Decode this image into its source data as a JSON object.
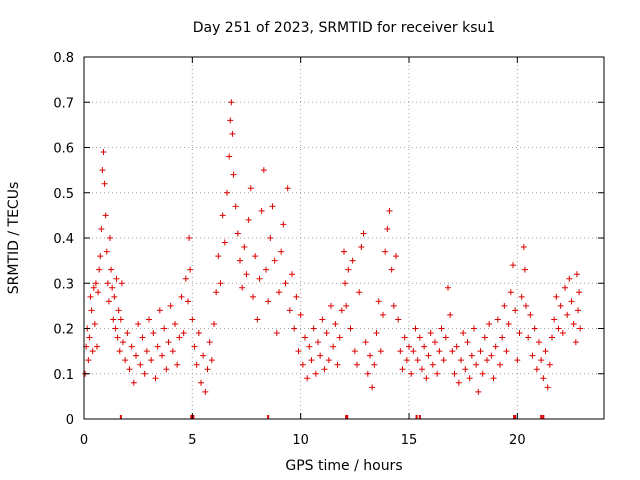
{
  "chart_data": {
    "type": "scatter",
    "title": "Day 251 of 2023, SRMTID for receiver ksu1",
    "xlabel": "GPS time / hours",
    "ylabel": "SRMTID / TECUs",
    "xlim": [
      0,
      24
    ],
    "ylim": [
      0,
      0.8
    ],
    "xticks": [
      0,
      5,
      10,
      15,
      20
    ],
    "yticks": [
      0,
      0.1,
      0.2,
      0.3,
      0.4,
      0.5,
      0.6,
      0.7,
      0.8
    ],
    "xtick_labels": [
      "0",
      "5",
      "10",
      "15",
      "20"
    ],
    "ytick_labels": [
      "0",
      "0.1",
      "0.2",
      "0.3",
      "0.4",
      "0.5",
      "0.6",
      "0.7",
      "0.8"
    ],
    "grid": true,
    "marker": "+",
    "marker_color": "#dd0000",
    "series": [
      {
        "name": "SRMTID",
        "points": [
          [
            0.05,
            0.1
          ],
          [
            0.1,
            0.16
          ],
          [
            0.15,
            0.2
          ],
          [
            0.2,
            0.13
          ],
          [
            0.25,
            0.18
          ],
          [
            0.3,
            0.27
          ],
          [
            0.35,
            0.24
          ],
          [
            0.4,
            0.15
          ],
          [
            0.45,
            0.29
          ],
          [
            0.5,
            0.21
          ],
          [
            0.55,
            0.3
          ],
          [
            0.6,
            0.16
          ],
          [
            0.65,
            0.28
          ],
          [
            0.7,
            0.33
          ],
          [
            0.75,
            0.36
          ],
          [
            0.8,
            0.42
          ],
          [
            0.85,
            0.55
          ],
          [
            0.9,
            0.59
          ],
          [
            0.95,
            0.52
          ],
          [
            1.0,
            0.45
          ],
          [
            1.05,
            0.37
          ],
          [
            1.1,
            0.3
          ],
          [
            1.15,
            0.26
          ],
          [
            1.2,
            0.4
          ],
          [
            1.25,
            0.33
          ],
          [
            1.3,
            0.29
          ],
          [
            1.35,
            0.22
          ],
          [
            1.4,
            0.27
          ],
          [
            1.45,
            0.2
          ],
          [
            1.5,
            0.31
          ],
          [
            1.55,
            0.18
          ],
          [
            1.6,
            0.24
          ],
          [
            1.65,
            0.15
          ],
          [
            1.7,
            0.22
          ],
          [
            1.75,
            0.3
          ],
          [
            1.8,
            0.17
          ],
          [
            1.9,
            0.13
          ],
          [
            2.0,
            0.19
          ],
          [
            2.1,
            0.11
          ],
          [
            2.2,
            0.16
          ],
          [
            2.3,
            0.08
          ],
          [
            2.4,
            0.14
          ],
          [
            2.5,
            0.21
          ],
          [
            2.6,
            0.12
          ],
          [
            2.7,
            0.18
          ],
          [
            2.8,
            0.1
          ],
          [
            2.9,
            0.15
          ],
          [
            3.0,
            0.22
          ],
          [
            3.1,
            0.13
          ],
          [
            3.2,
            0.19
          ],
          [
            3.3,
            0.09
          ],
          [
            3.4,
            0.16
          ],
          [
            3.5,
            0.24
          ],
          [
            3.6,
            0.14
          ],
          [
            3.7,
            0.2
          ],
          [
            3.8,
            0.11
          ],
          [
            3.9,
            0.17
          ],
          [
            4.0,
            0.25
          ],
          [
            4.1,
            0.15
          ],
          [
            4.2,
            0.21
          ],
          [
            4.3,
            0.12
          ],
          [
            4.4,
            0.18
          ],
          [
            4.5,
            0.27
          ],
          [
            4.6,
            0.19
          ],
          [
            4.7,
            0.31
          ],
          [
            4.8,
            0.26
          ],
          [
            4.85,
            0.4
          ],
          [
            4.9,
            0.33
          ],
          [
            5.0,
            0.22
          ],
          [
            5.1,
            0.16
          ],
          [
            5.2,
            0.12
          ],
          [
            5.3,
            0.19
          ],
          [
            5.4,
            0.08
          ],
          [
            5.5,
            0.14
          ],
          [
            5.6,
            0.06
          ],
          [
            5.7,
            0.11
          ],
          [
            5.8,
            0.17
          ],
          [
            5.9,
            0.13
          ],
          [
            6.0,
            0.21
          ],
          [
            6.1,
            0.28
          ],
          [
            6.2,
            0.36
          ],
          [
            6.3,
            0.3
          ],
          [
            6.4,
            0.45
          ],
          [
            6.5,
            0.39
          ],
          [
            6.6,
            0.5
          ],
          [
            6.7,
            0.58
          ],
          [
            6.75,
            0.66
          ],
          [
            6.8,
            0.7
          ],
          [
            6.85,
            0.63
          ],
          [
            6.9,
            0.54
          ],
          [
            7.0,
            0.47
          ],
          [
            7.1,
            0.41
          ],
          [
            7.2,
            0.35
          ],
          [
            7.3,
            0.29
          ],
          [
            7.4,
            0.38
          ],
          [
            7.5,
            0.32
          ],
          [
            7.6,
            0.44
          ],
          [
            7.7,
            0.51
          ],
          [
            7.8,
            0.27
          ],
          [
            7.9,
            0.36
          ],
          [
            8.0,
            0.22
          ],
          [
            8.1,
            0.31
          ],
          [
            8.2,
            0.46
          ],
          [
            8.3,
            0.55
          ],
          [
            8.4,
            0.33
          ],
          [
            8.5,
            0.26
          ],
          [
            8.6,
            0.4
          ],
          [
            8.7,
            0.47
          ],
          [
            8.8,
            0.35
          ],
          [
            8.9,
            0.19
          ],
          [
            9.0,
            0.28
          ],
          [
            9.1,
            0.37
          ],
          [
            9.2,
            0.43
          ],
          [
            9.3,
            0.3
          ],
          [
            9.4,
            0.51
          ],
          [
            9.5,
            0.24
          ],
          [
            9.6,
            0.32
          ],
          [
            9.7,
            0.2
          ],
          [
            9.8,
            0.27
          ],
          [
            9.9,
            0.15
          ],
          [
            10.0,
            0.23
          ],
          [
            10.1,
            0.12
          ],
          [
            10.2,
            0.18
          ],
          [
            10.3,
            0.09
          ],
          [
            10.4,
            0.16
          ],
          [
            10.5,
            0.13
          ],
          [
            10.6,
            0.2
          ],
          [
            10.7,
            0.1
          ],
          [
            10.8,
            0.17
          ],
          [
            10.9,
            0.14
          ],
          [
            11.0,
            0.22
          ],
          [
            11.1,
            0.11
          ],
          [
            11.2,
            0.19
          ],
          [
            11.3,
            0.13
          ],
          [
            11.4,
            0.25
          ],
          [
            11.5,
            0.16
          ],
          [
            11.6,
            0.21
          ],
          [
            11.7,
            0.12
          ],
          [
            11.8,
            0.18
          ],
          [
            11.9,
            0.24
          ],
          [
            12.0,
            0.37
          ],
          [
            12.05,
            0.3
          ],
          [
            12.1,
            0.25
          ],
          [
            12.2,
            0.33
          ],
          [
            12.3,
            0.2
          ],
          [
            12.4,
            0.35
          ],
          [
            12.5,
            0.15
          ],
          [
            12.6,
            0.12
          ],
          [
            12.7,
            0.28
          ],
          [
            12.8,
            0.38
          ],
          [
            12.9,
            0.41
          ],
          [
            13.0,
            0.17
          ],
          [
            13.1,
            0.1
          ],
          [
            13.2,
            0.14
          ],
          [
            13.3,
            0.07
          ],
          [
            13.4,
            0.12
          ],
          [
            13.5,
            0.19
          ],
          [
            13.6,
            0.26
          ],
          [
            13.7,
            0.15
          ],
          [
            13.8,
            0.23
          ],
          [
            13.9,
            0.37
          ],
          [
            14.0,
            0.42
          ],
          [
            14.1,
            0.46
          ],
          [
            14.2,
            0.33
          ],
          [
            14.3,
            0.25
          ],
          [
            14.4,
            0.36
          ],
          [
            14.5,
            0.22
          ],
          [
            14.6,
            0.15
          ],
          [
            14.7,
            0.11
          ],
          [
            14.8,
            0.18
          ],
          [
            14.9,
            0.13
          ],
          [
            15.0,
            0.16
          ],
          [
            15.1,
            0.1
          ],
          [
            15.2,
            0.15
          ],
          [
            15.3,
            0.2
          ],
          [
            15.4,
            0.13
          ],
          [
            15.5,
            0.18
          ],
          [
            15.6,
            0.11
          ],
          [
            15.7,
            0.16
          ],
          [
            15.8,
            0.09
          ],
          [
            15.9,
            0.14
          ],
          [
            16.0,
            0.19
          ],
          [
            16.1,
            0.12
          ],
          [
            16.2,
            0.17
          ],
          [
            16.3,
            0.1
          ],
          [
            16.4,
            0.15
          ],
          [
            16.5,
            0.2
          ],
          [
            16.6,
            0.13
          ],
          [
            16.7,
            0.18
          ],
          [
            16.8,
            0.29
          ],
          [
            16.9,
            0.23
          ],
          [
            17.0,
            0.15
          ],
          [
            17.1,
            0.1
          ],
          [
            17.2,
            0.16
          ],
          [
            17.3,
            0.08
          ],
          [
            17.4,
            0.13
          ],
          [
            17.5,
            0.19
          ],
          [
            17.6,
            0.11
          ],
          [
            17.7,
            0.17
          ],
          [
            17.8,
            0.09
          ],
          [
            17.9,
            0.14
          ],
          [
            18.0,
            0.2
          ],
          [
            18.1,
            0.12
          ],
          [
            18.2,
            0.06
          ],
          [
            18.3,
            0.15
          ],
          [
            18.4,
            0.1
          ],
          [
            18.5,
            0.18
          ],
          [
            18.6,
            0.13
          ],
          [
            18.7,
            0.21
          ],
          [
            18.8,
            0.14
          ],
          [
            18.9,
            0.09
          ],
          [
            19.0,
            0.16
          ],
          [
            19.1,
            0.22
          ],
          [
            19.2,
            0.12
          ],
          [
            19.3,
            0.18
          ],
          [
            19.4,
            0.25
          ],
          [
            19.5,
            0.15
          ],
          [
            19.6,
            0.21
          ],
          [
            19.7,
            0.28
          ],
          [
            19.8,
            0.34
          ],
          [
            19.9,
            0.24
          ],
          [
            20.0,
            0.13
          ],
          [
            20.1,
            0.19
          ],
          [
            20.2,
            0.27
          ],
          [
            20.3,
            0.38
          ],
          [
            20.35,
            0.33
          ],
          [
            20.4,
            0.25
          ],
          [
            20.5,
            0.18
          ],
          [
            20.6,
            0.23
          ],
          [
            20.7,
            0.14
          ],
          [
            20.8,
            0.2
          ],
          [
            20.9,
            0.11
          ],
          [
            21.0,
            0.17
          ],
          [
            21.1,
            0.13
          ],
          [
            21.2,
            0.09
          ],
          [
            21.3,
            0.15
          ],
          [
            21.4,
            0.07
          ],
          [
            21.5,
            0.12
          ],
          [
            21.6,
            0.18
          ],
          [
            21.7,
            0.22
          ],
          [
            21.8,
            0.27
          ],
          [
            21.9,
            0.2
          ],
          [
            22.0,
            0.25
          ],
          [
            22.1,
            0.19
          ],
          [
            22.2,
            0.29
          ],
          [
            22.3,
            0.23
          ],
          [
            22.4,
            0.31
          ],
          [
            22.5,
            0.26
          ],
          [
            22.6,
            0.21
          ],
          [
            22.7,
            0.17
          ],
          [
            22.75,
            0.32
          ],
          [
            22.8,
            0.24
          ],
          [
            22.85,
            0.28
          ],
          [
            22.9,
            0.2
          ]
        ]
      }
    ],
    "bottom_markers_x": [
      1.7,
      4.95,
      5.05,
      8.5,
      12.1,
      12.15,
      15.35,
      15.5,
      19.85,
      19.9,
      21.1,
      21.2
    ]
  }
}
